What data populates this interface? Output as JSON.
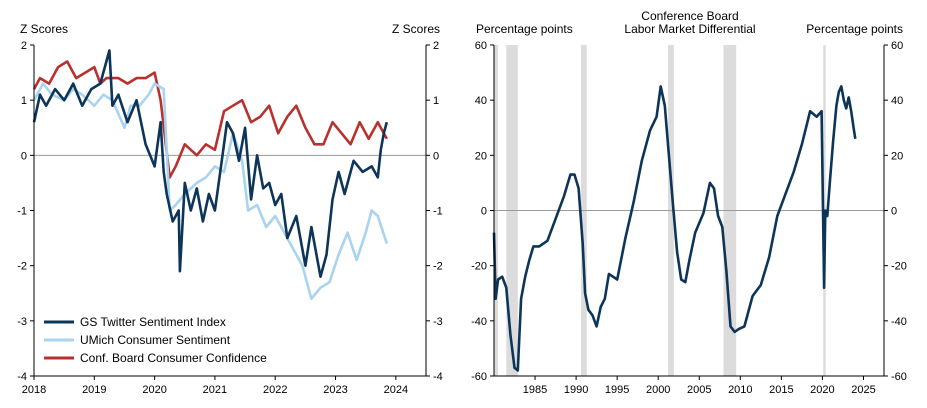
{
  "colors": {
    "twitter": "#0d3559",
    "umich": "#a9d3ee",
    "confboard": "#b8312e",
    "recession": "#dcdcdc",
    "zero_line": "#9a9a9a"
  },
  "chart_data": [
    {
      "type": "line",
      "title": "",
      "ylabel_left": "Z Scores",
      "ylabel_right": "Z Scores",
      "xlim": [
        2018,
        2024.5
      ],
      "ylim": [
        -4,
        2
      ],
      "x_ticks": [
        "2018",
        "2019",
        "2020",
        "2021",
        "2022",
        "2023",
        "2024"
      ],
      "y_ticks": [
        "-4",
        "-3",
        "-2",
        "-1",
        "0",
        "1",
        "2"
      ],
      "legend_position": "bottom-left",
      "series": [
        {
          "name": "GS Twitter Sentiment Index",
          "color_key": "twitter",
          "x": [
            2018.0,
            2018.1,
            2018.2,
            2018.35,
            2018.5,
            2018.65,
            2018.8,
            2018.95,
            2019.1,
            2019.25,
            2019.3,
            2019.4,
            2019.55,
            2019.7,
            2019.85,
            2020.0,
            2020.1,
            2020.15,
            2020.2,
            2020.3,
            2020.4,
            2020.42,
            2020.5,
            2020.6,
            2020.7,
            2020.8,
            2020.9,
            2021.0,
            2021.1,
            2021.2,
            2021.3,
            2021.4,
            2021.5,
            2021.6,
            2021.7,
            2021.8,
            2021.9,
            2022.0,
            2022.1,
            2022.2,
            2022.35,
            2022.5,
            2022.6,
            2022.75,
            2022.85,
            2022.95,
            2023.05,
            2023.15,
            2023.3,
            2023.45,
            2023.6,
            2023.7,
            2023.75,
            2023.8,
            2023.85
          ],
          "values": [
            0.6,
            1.1,
            0.9,
            1.2,
            1.0,
            1.3,
            0.9,
            1.2,
            1.3,
            1.9,
            0.9,
            1.1,
            0.6,
            1.0,
            0.2,
            -0.2,
            0.6,
            -0.3,
            -0.7,
            -1.2,
            -1.0,
            -2.1,
            -0.5,
            -1.0,
            -0.6,
            -1.2,
            -0.7,
            -1.0,
            -0.2,
            0.6,
            0.4,
            -0.1,
            0.5,
            -0.8,
            0.0,
            -0.6,
            -0.5,
            -0.9,
            -0.7,
            -1.5,
            -1.1,
            -2.0,
            -1.3,
            -2.2,
            -1.8,
            -0.8,
            -0.3,
            -0.7,
            -0.1,
            -0.3,
            -0.2,
            -0.4,
            0.1,
            0.4,
            0.6
          ]
        },
        {
          "name": "UMich Consumer Sentiment",
          "color_key": "umich",
          "x": [
            2018.0,
            2018.15,
            2018.3,
            2018.5,
            2018.65,
            2018.8,
            2019.0,
            2019.15,
            2019.3,
            2019.5,
            2019.6,
            2019.75,
            2019.9,
            2020.0,
            2020.15,
            2020.25,
            2020.35,
            2020.5,
            2020.7,
            2020.85,
            2021.0,
            2021.15,
            2021.3,
            2021.45,
            2021.55,
            2021.7,
            2021.85,
            2022.0,
            2022.15,
            2022.3,
            2022.45,
            2022.6,
            2022.75,
            2022.9,
            2023.05,
            2023.2,
            2023.35,
            2023.5,
            2023.6,
            2023.7,
            2023.85
          ],
          "values": [
            1.0,
            1.3,
            1.1,
            1.0,
            1.2,
            1.1,
            0.9,
            1.1,
            1.0,
            0.5,
            0.9,
            0.9,
            1.1,
            1.3,
            1.2,
            -1.0,
            -0.9,
            -0.7,
            -0.5,
            -0.4,
            -0.2,
            -0.3,
            0.4,
            -0.1,
            -1.0,
            -0.9,
            -1.3,
            -1.1,
            -1.4,
            -1.7,
            -2.0,
            -2.6,
            -2.4,
            -2.3,
            -1.8,
            -1.4,
            -1.9,
            -1.4,
            -1.0,
            -1.1,
            -1.6
          ]
        },
        {
          "name": "Conf. Board Consumer Confidence",
          "color_key": "confboard",
          "x": [
            2018.0,
            2018.1,
            2018.25,
            2018.4,
            2018.55,
            2018.7,
            2018.85,
            2019.0,
            2019.1,
            2019.2,
            2019.4,
            2019.55,
            2019.7,
            2019.85,
            2020.0,
            2020.1,
            2020.25,
            2020.35,
            2020.5,
            2020.7,
            2020.85,
            2021.0,
            2021.15,
            2021.3,
            2021.45,
            2021.6,
            2021.75,
            2021.9,
            2022.05,
            2022.2,
            2022.35,
            2022.5,
            2022.65,
            2022.8,
            2022.95,
            2023.1,
            2023.25,
            2023.4,
            2023.55,
            2023.7,
            2023.85
          ],
          "values": [
            1.2,
            1.4,
            1.3,
            1.6,
            1.7,
            1.4,
            1.5,
            1.6,
            1.3,
            1.4,
            1.4,
            1.3,
            1.4,
            1.4,
            1.5,
            1.0,
            -0.4,
            -0.2,
            0.2,
            0.0,
            0.2,
            0.1,
            0.8,
            0.9,
            1.0,
            0.6,
            0.7,
            0.9,
            0.4,
            0.7,
            0.9,
            0.5,
            0.2,
            0.2,
            0.6,
            0.4,
            0.2,
            0.6,
            0.3,
            0.6,
            0.3
          ]
        }
      ]
    },
    {
      "type": "line",
      "title": "Conference Board Labor Market Differential",
      "title_lines": [
        "Conference Board",
        "Labor Market Differential"
      ],
      "ylabel_left": "Percentage points",
      "ylabel_right": "Percentage points",
      "xlim": [
        1980,
        2027.5
      ],
      "ylim": [
        -60,
        60
      ],
      "x_ticks": [
        "1985",
        "1990",
        "1995",
        "2000",
        "2005",
        "2010",
        "2015",
        "2020",
        "2025"
      ],
      "y_ticks": [
        "-60",
        "-40",
        "-20",
        "0",
        "20",
        "40",
        "60"
      ],
      "recessions": [
        [
          1980.0,
          1980.5
        ],
        [
          1981.5,
          1982.9
        ],
        [
          1990.6,
          1991.3
        ],
        [
          2001.2,
          2001.9
        ],
        [
          2007.95,
          2009.5
        ],
        [
          2020.1,
          2020.4
        ]
      ],
      "series": [
        {
          "name": "Labor Market Differential",
          "color_key": "twitter",
          "x": [
            1980.0,
            1980.2,
            1980.5,
            1981.0,
            1981.5,
            1982.0,
            1982.5,
            1982.9,
            1983.3,
            1983.8,
            1984.3,
            1984.8,
            1985.5,
            1986.5,
            1987.5,
            1988.5,
            1989.3,
            1989.8,
            1990.3,
            1990.8,
            1991.1,
            1991.5,
            1992.0,
            1992.5,
            1993.0,
            1993.5,
            1994.0,
            1995.0,
            1996.0,
            1997.0,
            1998.0,
            1999.0,
            1999.8,
            2000.3,
            2000.8,
            2001.3,
            2001.8,
            2002.3,
            2002.8,
            2003.3,
            2003.8,
            2004.5,
            2005.5,
            2006.3,
            2006.8,
            2007.3,
            2007.8,
            2008.3,
            2008.8,
            2009.3,
            2009.8,
            2010.5,
            2011.5,
            2012.5,
            2013.5,
            2014.5,
            2015.5,
            2016.5,
            2017.5,
            2018.5,
            2019.3,
            2019.9,
            2020.2,
            2020.35,
            2020.6,
            2020.9,
            2021.3,
            2021.7,
            2022.0,
            2022.3,
            2022.6,
            2022.9,
            2023.2,
            2023.5,
            2023.8,
            2024.0
          ],
          "values": [
            -8,
            -32,
            -25,
            -24,
            -28,
            -45,
            -57,
            -58,
            -32,
            -24,
            -18,
            -13,
            -13,
            -11,
            -3,
            5,
            13,
            13,
            8,
            -12,
            -30,
            -36,
            -38,
            -42,
            -35,
            -32,
            -23,
            -25,
            -10,
            3,
            18,
            29,
            34,
            45,
            38,
            20,
            2,
            -15,
            -25,
            -26,
            -18,
            -8,
            -1,
            10,
            8,
            -2,
            -6,
            -22,
            -42,
            -44,
            -43,
            -42,
            -31,
            -27,
            -17,
            -2,
            6,
            14,
            24,
            36,
            34,
            36,
            -28,
            0,
            -2,
            10,
            25,
            38,
            43,
            45,
            40,
            37,
            41,
            36,
            30,
            26
          ]
        }
      ]
    }
  ]
}
